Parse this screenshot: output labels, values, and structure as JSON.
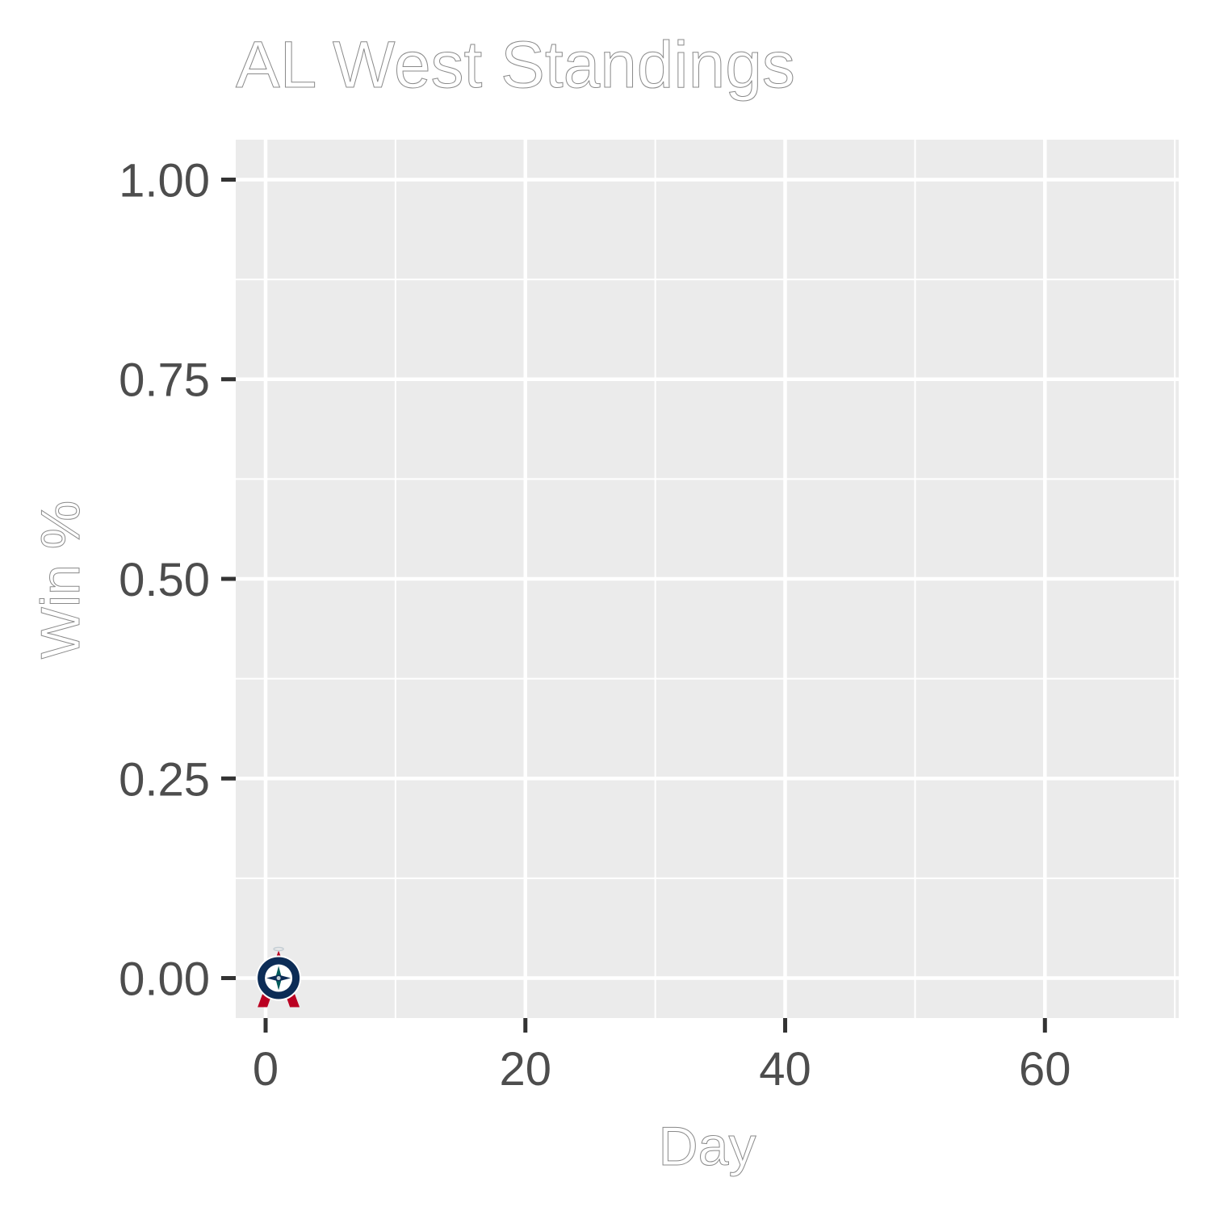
{
  "chart_data": {
    "type": "scatter",
    "title": "AL West Standings",
    "xlabel": "Day",
    "ylabel": "Win %",
    "xlim": [
      -2.3,
      70.3
    ],
    "ylim": [
      -0.05,
      1.05
    ],
    "x_ticks": [
      0,
      20,
      40,
      60
    ],
    "x_tick_labels": [
      "0",
      "20",
      "40",
      "60"
    ],
    "y_ticks": [
      0,
      0.25,
      0.5,
      0.75,
      1.0
    ],
    "y_tick_labels": [
      "0.00",
      "0.25",
      "0.50",
      "0.75",
      "1.00"
    ],
    "grid": true,
    "background": "#ebebeb",
    "points": [
      {
        "team": "Angels",
        "x": 1,
        "y": 0,
        "icon": "angels-logo-icon",
        "color": "#ba0021"
      },
      {
        "team": "Mariners",
        "x": 1,
        "y": 0,
        "icon": "mariners-logo-icon",
        "color": "#0c2c56"
      }
    ]
  }
}
